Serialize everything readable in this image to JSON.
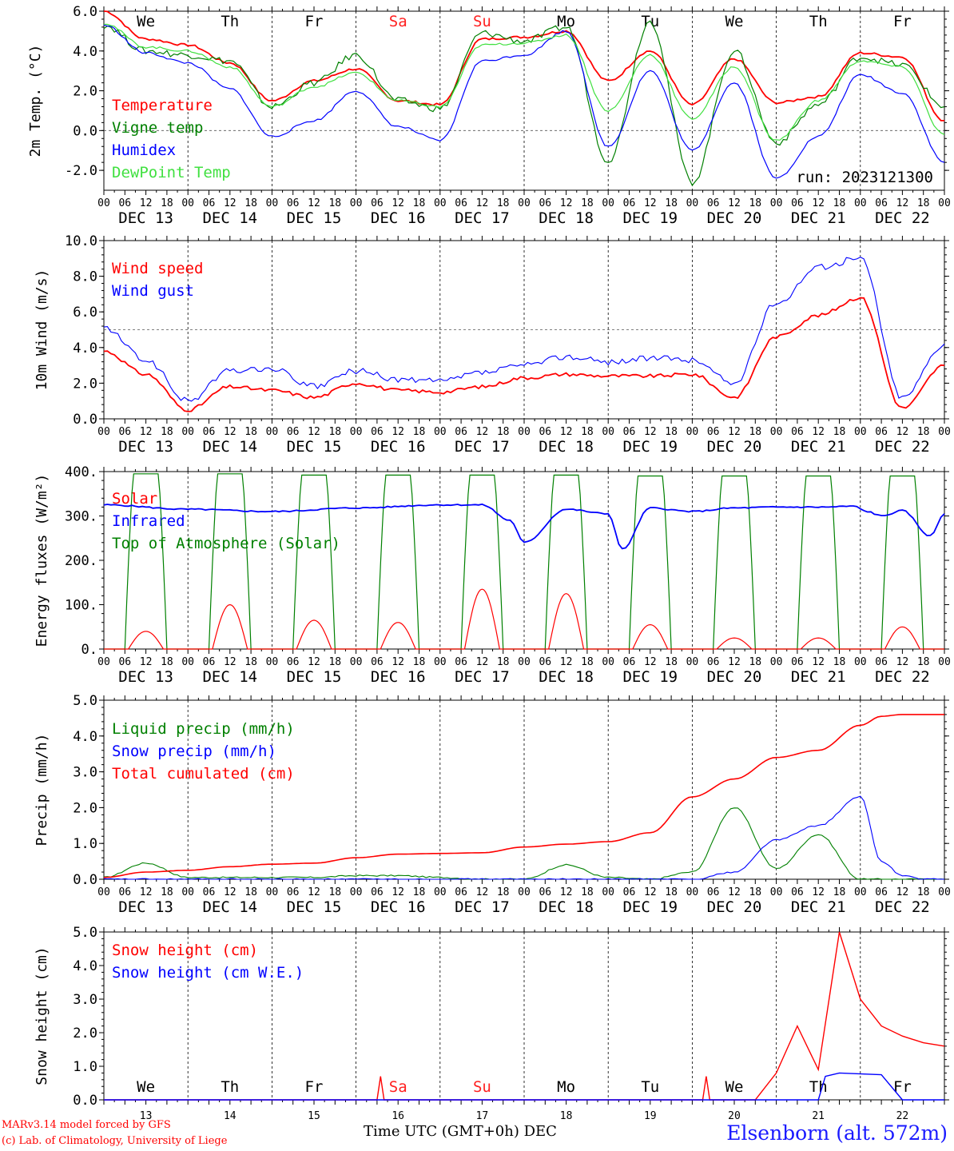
{
  "run_label": "run: 2023121300",
  "footer": {
    "credit_line1": "MARv3.14 model forced by GFS",
    "credit_line2": "(c) Lab. of Climatology, University of Liege",
    "x_title": "Time UTC (GMT+0h) DEC",
    "station": "Elsenborn (alt. 572m)"
  },
  "days": {
    "hour_ticks": [
      "00",
      "06",
      "12",
      "18"
    ],
    "dates": [
      "DEC 13",
      "DEC 14",
      "DEC 15",
      "DEC 16",
      "DEC 17",
      "DEC 18",
      "DEC 19",
      "DEC 20",
      "DEC 21",
      "DEC 22"
    ],
    "weekdays": [
      "We",
      "Th",
      "Fr",
      "Sa",
      "Su",
      "Mo",
      "Tu",
      "We",
      "Th",
      "Fr"
    ],
    "day_numbers": [
      "13",
      "14",
      "15",
      "16",
      "17",
      "18",
      "19",
      "20",
      "21",
      "22"
    ],
    "weekend_color": "#ff2020"
  },
  "chart_data": [
    {
      "type": "line",
      "ylabel": "2m Temp. (°C)",
      "ylim": [
        -3.0,
        6.0
      ],
      "yticks": [
        "-2.0",
        "0.0",
        "2.0",
        "4.0",
        "6.0"
      ],
      "x_hours": [
        0,
        12,
        24,
        36,
        48,
        60,
        72,
        84,
        96,
        108,
        120,
        132,
        144,
        156,
        168,
        180,
        192,
        204,
        216,
        228,
        240
      ],
      "reference_line": 0.0,
      "series": [
        {
          "name": "Temperature",
          "color": "#ff0000",
          "values": [
            6.0,
            4.6,
            4.3,
            3.4,
            1.5,
            2.5,
            3.1,
            1.5,
            1.3,
            4.6,
            4.7,
            5.0,
            2.5,
            4.0,
            1.3,
            3.6,
            1.4,
            1.7,
            3.9,
            3.7,
            0.5
          ]
        },
        {
          "name": "Vigne temp",
          "color": "#008000",
          "values": [
            5.3,
            4.0,
            3.8,
            3.5,
            1.2,
            2.4,
            3.8,
            1.5,
            1.1,
            4.9,
            4.5,
            5.2,
            -1.5,
            5.5,
            -2.6,
            4.0,
            -0.6,
            1.3,
            3.7,
            3.3,
            1.2
          ]
        },
        {
          "name": "Humidex",
          "color": "#0000ff",
          "values": [
            5.3,
            3.9,
            3.4,
            2.1,
            -0.3,
            0.5,
            2.0,
            0.2,
            -0.5,
            3.5,
            3.8,
            5.0,
            -0.8,
            3.0,
            -1.0,
            2.4,
            -2.4,
            -0.3,
            2.8,
            1.9,
            -1.6
          ]
        },
        {
          "name": "DewPoint Temp",
          "color": "#40e040",
          "values": [
            5.4,
            4.2,
            4.0,
            3.2,
            1.2,
            2.2,
            2.9,
            1.5,
            1.2,
            4.3,
            4.4,
            4.8,
            1.0,
            3.8,
            0.6,
            3.2,
            -0.5,
            1.5,
            3.5,
            3.2,
            -0.2
          ]
        }
      ]
    },
    {
      "type": "line",
      "ylabel": "10m Wind (m/s)",
      "ylim": [
        0.0,
        10.0
      ],
      "yticks": [
        "0.0",
        "2.0",
        "4.0",
        "6.0",
        "8.0",
        "10.0"
      ],
      "x_hours": [
        0,
        12,
        24,
        36,
        48,
        60,
        72,
        84,
        96,
        108,
        120,
        132,
        144,
        156,
        168,
        180,
        192,
        204,
        216,
        228,
        240
      ],
      "reference_line": 5.0,
      "series": [
        {
          "name": "Wind speed",
          "color": "#ff0000",
          "values": [
            3.8,
            2.5,
            0.5,
            1.8,
            1.6,
            1.2,
            2.0,
            1.6,
            1.5,
            1.8,
            2.3,
            2.5,
            2.4,
            2.4,
            2.5,
            1.2,
            4.6,
            5.8,
            6.8,
            0.6,
            3.0
          ]
        },
        {
          "name": "Wind gust",
          "color": "#0000ff",
          "values": [
            5.1,
            3.3,
            1.0,
            2.7,
            2.8,
            1.8,
            2.7,
            2.2,
            2.1,
            2.6,
            3.0,
            3.5,
            3.2,
            3.4,
            3.3,
            2.0,
            6.5,
            8.5,
            9.0,
            1.2,
            4.2
          ]
        }
      ]
    },
    {
      "type": "line",
      "ylabel": "Energy fluxes (W/m²)",
      "ylim": [
        0,
        400
      ],
      "yticks": [
        "0.",
        "100.",
        "200.",
        "300.",
        "400."
      ],
      "series": [
        {
          "name": "Solar",
          "color": "#ff0000",
          "peaks": [
            40,
            100,
            65,
            60,
            135,
            125,
            55,
            25,
            25,
            50
          ]
        },
        {
          "name": "Infrared",
          "color": "#0000ff",
          "values": [
            325,
            315,
            310,
            318,
            325,
            235,
            315,
            225,
            318,
            310,
            320,
            320,
            322,
            320,
            315,
            255
          ]
        },
        {
          "name": "Top of Atmosphere (Solar)",
          "color": "#008000",
          "peaks": [
            395,
            395,
            392,
            392,
            392,
            392,
            390,
            390,
            390,
            390
          ]
        }
      ]
    },
    {
      "type": "line",
      "ylabel": "Precip (mm/h)",
      "ylim": [
        0.0,
        5.0
      ],
      "yticks": [
        "0.0",
        "1.0",
        "2.0",
        "3.0",
        "4.0",
        "5.0"
      ],
      "x_hours": [
        0,
        12,
        24,
        36,
        48,
        60,
        72,
        84,
        96,
        108,
        120,
        132,
        144,
        156,
        168,
        180,
        192,
        204,
        216,
        222,
        228,
        234,
        240
      ],
      "series": [
        {
          "name": "Liquid precip (mm/h)",
          "color": "#008000",
          "values": [
            0.05,
            0.45,
            0.05,
            0.05,
            0.05,
            0.05,
            0.1,
            0.1,
            0.05,
            0.0,
            0.0,
            0.4,
            0.05,
            0.0,
            0.2,
            2.0,
            0.3,
            1.25,
            0.0,
            0.0,
            0.0,
            0.0,
            0.0
          ]
        },
        {
          "name": "Snow precip (mm/h)",
          "color": "#0000ff",
          "values": [
            0.0,
            0.0,
            0.0,
            0.0,
            0.0,
            0.0,
            0.0,
            0.0,
            0.0,
            0.0,
            0.0,
            0.0,
            0.0,
            0.0,
            0.0,
            0.2,
            1.1,
            1.5,
            2.3,
            0.5,
            0.1,
            0.0,
            0.0
          ]
        },
        {
          "name": "Total cumulated (cm)",
          "color": "#ff0000",
          "values": [
            0.05,
            0.2,
            0.25,
            0.35,
            0.42,
            0.45,
            0.6,
            0.7,
            0.72,
            0.74,
            0.9,
            0.98,
            1.05,
            1.3,
            2.3,
            2.8,
            3.4,
            3.6,
            4.3,
            4.55,
            4.6,
            4.6,
            4.6
          ]
        }
      ]
    },
    {
      "type": "line",
      "ylabel": "Snow height (cm)",
      "ylim": [
        0.0,
        5.0
      ],
      "yticks": [
        "0.0",
        "1.0",
        "2.0",
        "3.0",
        "4.0",
        "5.0"
      ],
      "series": [
        {
          "name": "Snow height (cm)",
          "color": "#ff0000",
          "values_x_hours": [
            0,
            78,
            79,
            80,
            171,
            172,
            173,
            180,
            186,
            192,
            198,
            204,
            210,
            216,
            222,
            228,
            234,
            240
          ],
          "values": [
            0,
            0,
            0.7,
            0,
            0,
            0.7,
            0,
            0,
            0,
            0.8,
            2.2,
            0.9,
            5.0,
            3.0,
            2.2,
            1.9,
            1.7,
            1.6
          ]
        },
        {
          "name": "Snow height (cm W.E.)",
          "color": "#0000ff",
          "values_x_hours": [
            0,
            204,
            206,
            210,
            222,
            228,
            240
          ],
          "values": [
            0,
            0,
            0.7,
            0.8,
            0.75,
            0,
            0
          ]
        }
      ]
    }
  ]
}
